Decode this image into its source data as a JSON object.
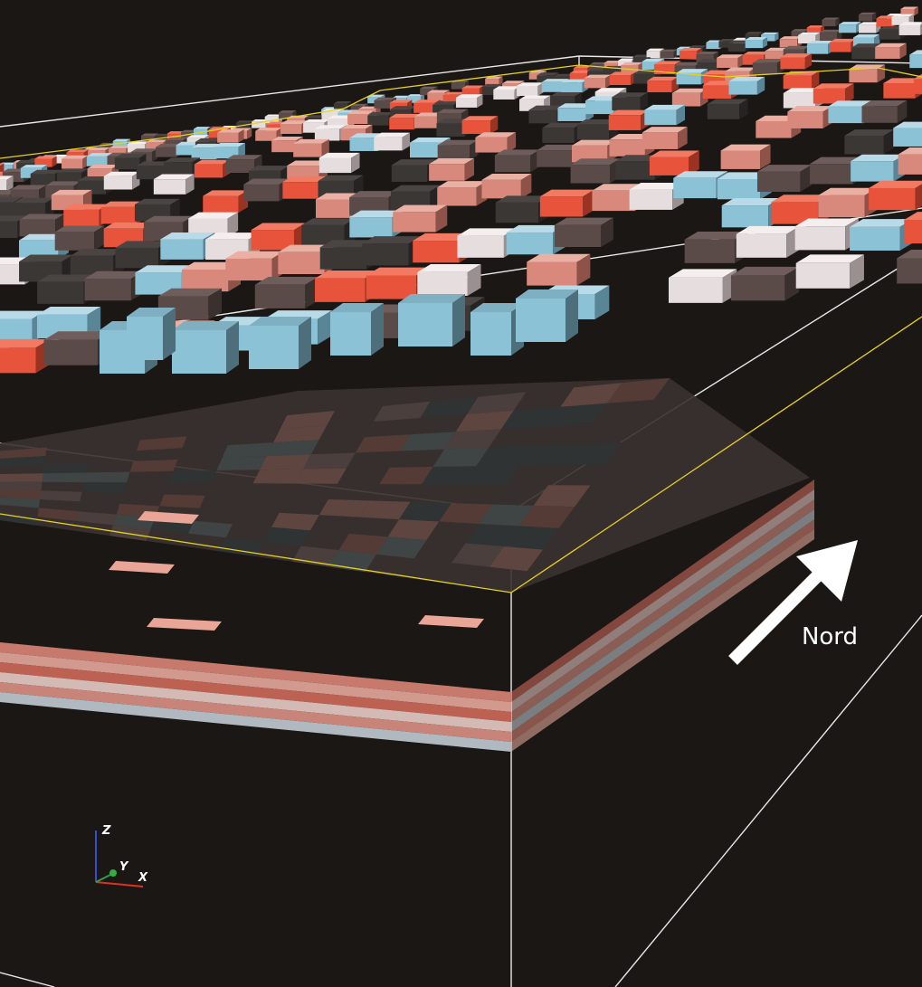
{
  "direction_label": "Nord",
  "axes": {
    "z": "Z",
    "y": "Y",
    "x": "X"
  }
}
